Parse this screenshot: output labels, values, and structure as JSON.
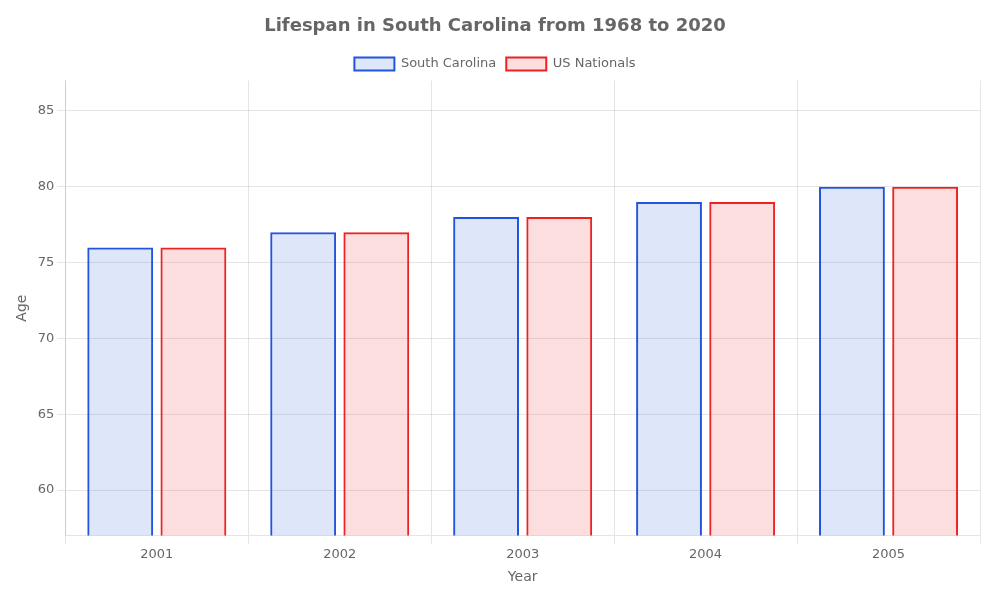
{
  "chart_data": {
    "type": "bar",
    "title": "Lifespan in South Carolina from 1968 to 2020",
    "xlabel": "Year",
    "ylabel": "Age",
    "categories": [
      "2001",
      "2002",
      "2003",
      "2004",
      "2005"
    ],
    "series": [
      {
        "name": "South Carolina",
        "color": "#2255dd",
        "values": [
          76,
          77,
          78,
          79,
          80
        ]
      },
      {
        "name": "US Nationals",
        "color": "#ee2222",
        "values": [
          76,
          77,
          78,
          79,
          80
        ]
      }
    ],
    "ylim": [
      57,
      87
    ],
    "yticks": [
      60,
      65,
      70,
      75,
      80,
      85
    ],
    "grid": true,
    "legend": "top"
  }
}
